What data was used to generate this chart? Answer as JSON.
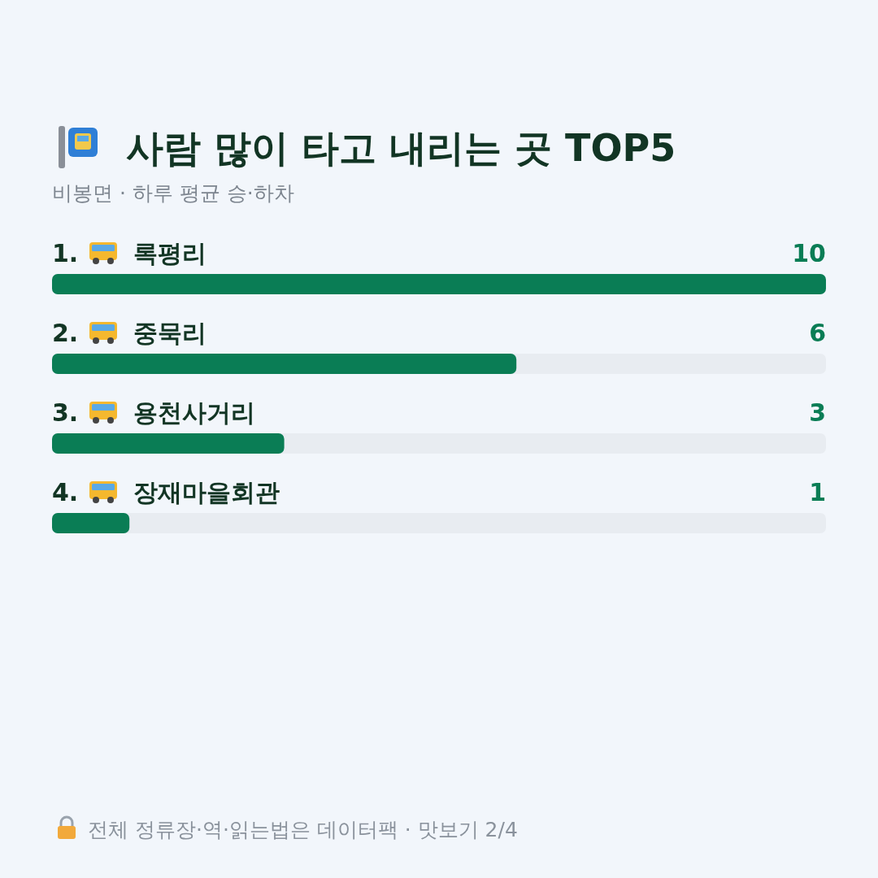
{
  "chart_data": {
    "type": "bar",
    "orientation": "horizontal",
    "title": "사람 많이 타고 내리는 곳 TOP5",
    "subtitle": "비봉면 · 하루 평균 승·하차",
    "categories": [
      "1. 록평리",
      "2. 중묵리",
      "3. 용천사거리",
      "4. 장재마을회관"
    ],
    "values": [
      10,
      6,
      3,
      1
    ],
    "color": "#0a7d55",
    "data_labels": true,
    "annotations": [
      "전체 정류장·역·읽는법은 데이터팩 · 맛보기 2/4"
    ]
  }
}
